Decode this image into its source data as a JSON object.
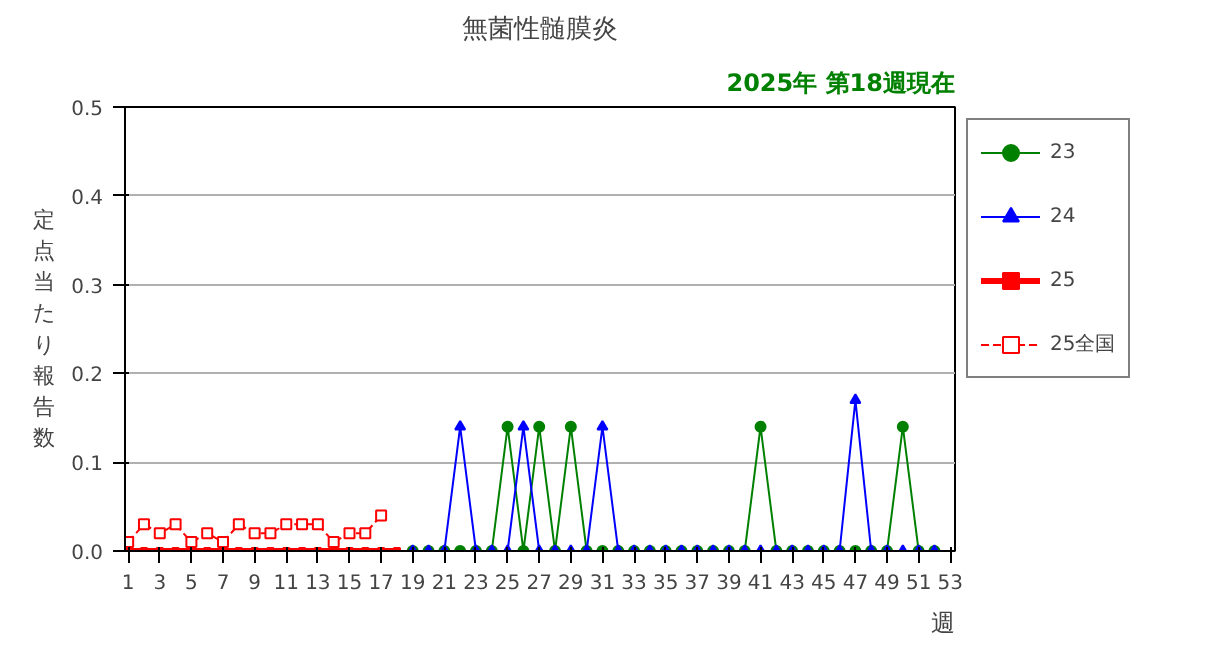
{
  "chart_data": {
    "type": "line",
    "title": "無菌性髄膜炎",
    "subtitle": "2025年 第18週現在",
    "xlabel": "週",
    "ylabel": "定点当たり報告数",
    "series": [
      {
        "name": "23",
        "color": "#008000",
        "marker": "circle",
        "line_style": "solid",
        "x": [
          19,
          20,
          21,
          22,
          23,
          24,
          25,
          26,
          27,
          28,
          29,
          30,
          31,
          32,
          33,
          34,
          35,
          36,
          37,
          38,
          39,
          40,
          41,
          42,
          43,
          44,
          45,
          46,
          47,
          48,
          49,
          50,
          51,
          52
        ],
        "values": [
          0,
          0,
          0,
          0,
          0,
          0,
          0.14,
          0,
          0.14,
          0,
          0.14,
          0,
          0,
          0,
          0,
          0,
          0,
          0,
          0,
          0,
          0,
          0,
          0.14,
          0,
          0,
          0,
          0,
          0,
          0,
          0,
          0,
          0.14,
          0,
          0
        ]
      },
      {
        "name": "24",
        "color": "#0000ff",
        "marker": "triangle",
        "line_style": "solid",
        "x": [
          19,
          20,
          21,
          22,
          23,
          24,
          25,
          26,
          27,
          28,
          29,
          30,
          31,
          32,
          33,
          34,
          35,
          36,
          37,
          38,
          39,
          40,
          41,
          42,
          43,
          44,
          45,
          46,
          47,
          48,
          49,
          50,
          51,
          52
        ],
        "values": [
          0,
          0,
          0,
          0.14,
          0,
          0,
          0,
          0.14,
          0,
          0,
          0,
          0,
          0.14,
          0,
          0,
          0,
          0,
          0,
          0,
          0,
          0,
          0,
          0,
          0,
          0,
          0,
          0,
          0,
          0.17,
          0,
          0,
          0,
          0,
          0
        ]
      },
      {
        "name": "25",
        "color": "#ff0000",
        "marker": "square",
        "line_style": "solid",
        "x": [
          1,
          2,
          3,
          4,
          5,
          6,
          7,
          8,
          9,
          10,
          11,
          12,
          13,
          14,
          15,
          16,
          17,
          18
        ],
        "values": [
          0,
          0,
          0,
          0,
          0,
          0,
          0,
          0,
          0,
          0,
          0,
          0,
          0,
          0,
          0,
          0,
          0,
          0
        ]
      },
      {
        "name": "25全国",
        "color": "#ff0000",
        "marker": "square",
        "line_style": "dashed",
        "x": [
          1,
          2,
          3,
          4,
          5,
          6,
          7,
          8,
          9,
          10,
          11,
          12,
          13,
          14,
          15,
          16,
          17
        ],
        "values": [
          0.01,
          0.03,
          0.02,
          0.03,
          0.01,
          0.02,
          0.01,
          0.03,
          0.02,
          0.02,
          0.03,
          0.03,
          0.03,
          0.01,
          0.02,
          0.02,
          0.04
        ]
      }
    ],
    "xlim": [
      0.8,
      53.3
    ],
    "xticks": [
      1,
      3,
      5,
      7,
      9,
      11,
      13,
      15,
      17,
      19,
      21,
      23,
      25,
      27,
      29,
      31,
      33,
      35,
      37,
      39,
      41,
      43,
      45,
      47,
      49,
      51,
      53
    ],
    "ylim": [
      0,
      0.5
    ],
    "yticks": [
      {
        "value": 0,
        "label": "0.0"
      },
      {
        "value": 0.1,
        "label": "0.1"
      },
      {
        "value": 0.2,
        "label": "0.2"
      },
      {
        "value": 0.3,
        "label": "0.3"
      },
      {
        "value": 0.4,
        "label": "0.4"
      },
      {
        "value": 0.5,
        "label": "0.5"
      }
    ],
    "grid": "y",
    "legend": "right"
  }
}
